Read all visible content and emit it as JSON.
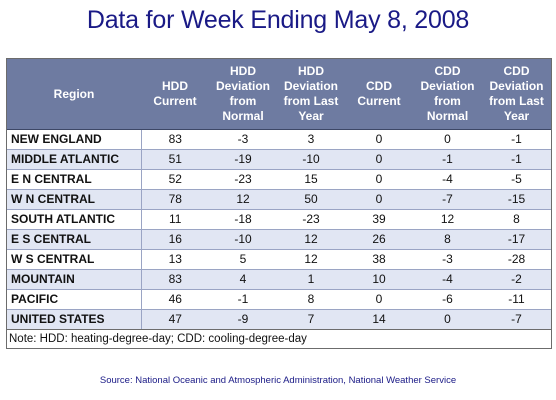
{
  "title": "Data for Week Ending May 8, 2008",
  "table": {
    "headers": [
      "Region",
      "HDD Current",
      "HDD Deviation from Normal",
      "HDD Deviation from Last Year",
      "CDD Current",
      "CDD Deviation from Normal",
      "CDD Deviation from Last Year"
    ],
    "rows": [
      [
        "NEW ENGLAND",
        "83",
        "-3",
        "3",
        "0",
        "0",
        "-1"
      ],
      [
        "MIDDLE ATLANTIC",
        "51",
        "-19",
        "-10",
        "0",
        "-1",
        "-1"
      ],
      [
        "E N CENTRAL",
        "52",
        "-23",
        "15",
        "0",
        "-4",
        "-5"
      ],
      [
        "W N CENTRAL",
        "78",
        "12",
        "50",
        "0",
        "-7",
        "-15"
      ],
      [
        "SOUTH ATLANTIC",
        "11",
        "-18",
        "-23",
        "39",
        "12",
        "8"
      ],
      [
        "E S CENTRAL",
        "16",
        "-10",
        "12",
        "26",
        "8",
        "-17"
      ],
      [
        "W S CENTRAL",
        "13",
        "5",
        "12",
        "38",
        "-3",
        "-28"
      ],
      [
        "MOUNTAIN",
        "83",
        "4",
        "1",
        "10",
        "-4",
        "-2"
      ],
      [
        "PACIFIC",
        "46",
        "-1",
        "8",
        "0",
        "-6",
        "-11"
      ],
      [
        "UNITED STATES",
        "47",
        "-9",
        "7",
        "14",
        "0",
        "-7"
      ]
    ]
  },
  "note": "Note: HDD: heating-degree-day; CDD: cooling-degree-day",
  "source": "Source:  National Oceanic and Atmospheric Administration, National Weather Service",
  "colors": {
    "title": "#1a1a86",
    "header_bg": "#6e7ba1",
    "row_alt": "#e1e6f3"
  }
}
